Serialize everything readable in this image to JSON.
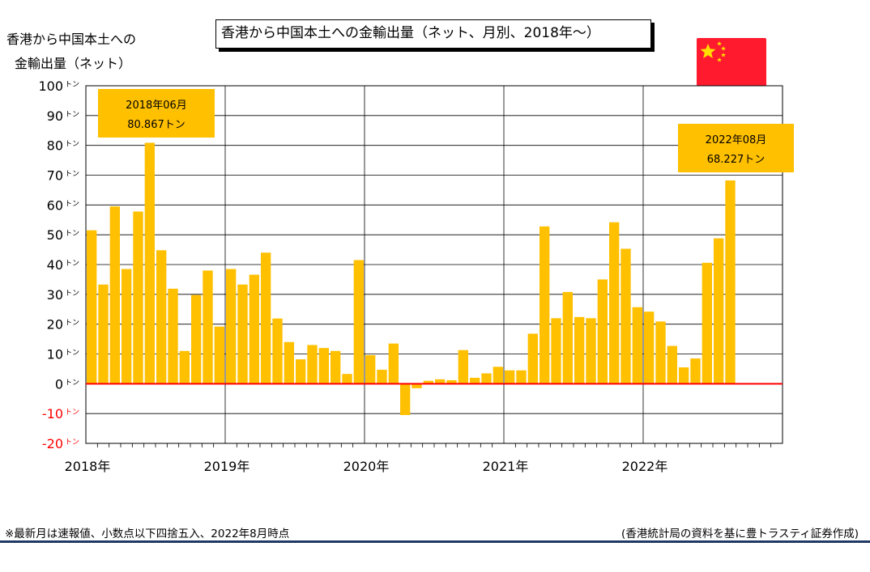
{
  "y_axis_title": [
    "香港から中国本土への",
    "金輸出量（ネット）"
  ],
  "footnote": "※最新月は速報値、小数点以下四捨五入、2022年8月時点",
  "source": "(香港統計局の資料を基に豊トラスティ証券作成)",
  "colors": {
    "bar": "#FFC000",
    "callout": "#FFC000",
    "zero_line": "#FF0000",
    "negative_tick": "#FF0000",
    "flag": "#FF1A2E",
    "star": "#FFDE00"
  },
  "icons": {
    "flag": "china-flag-icon"
  },
  "chart_data": {
    "type": "bar",
    "title": "香港から中国本土への金輸出量（ネット、月別、2018年～）",
    "ylim": [
      -20,
      100
    ],
    "y_ticks": [
      100,
      90,
      80,
      70,
      60,
      50,
      40,
      30,
      20,
      10,
      0,
      -10,
      -20
    ],
    "y_tick_unit": "トン",
    "x_tick_labels": [
      "2018年",
      "2019年",
      "2020年",
      "2021年",
      "2022年"
    ],
    "grid": true,
    "months_per_year": 12,
    "total_slots": 60,
    "series": [
      {
        "values": [
          51.5,
          33.3,
          59.5,
          38.5,
          57.8,
          80.867,
          44.8,
          31.9,
          11.0,
          29.8,
          38.0,
          19.2,
          38.5,
          33.3,
          36.6,
          44.0,
          21.9,
          14.0,
          8.2,
          13.0,
          12.0,
          11.0,
          3.3,
          41.5,
          9.6,
          4.7,
          13.5,
          -10.5,
          -1.5,
          1.0,
          1.5,
          1.2,
          11.3,
          2.0,
          3.5,
          5.7,
          4.5,
          4.5,
          16.8,
          52.8,
          22.0,
          30.8,
          22.4,
          22.0,
          35.0,
          54.2,
          45.3,
          25.7,
          24.2,
          20.9,
          12.7,
          5.5,
          8.5,
          40.6,
          48.8,
          68.227
        ]
      }
    ],
    "annotations": [
      {
        "label_period": "2018年06月",
        "label_value": "80.867トン",
        "index": 5
      },
      {
        "label_period": "2022年08月",
        "label_value": "68.227トン",
        "index": 55
      }
    ]
  }
}
